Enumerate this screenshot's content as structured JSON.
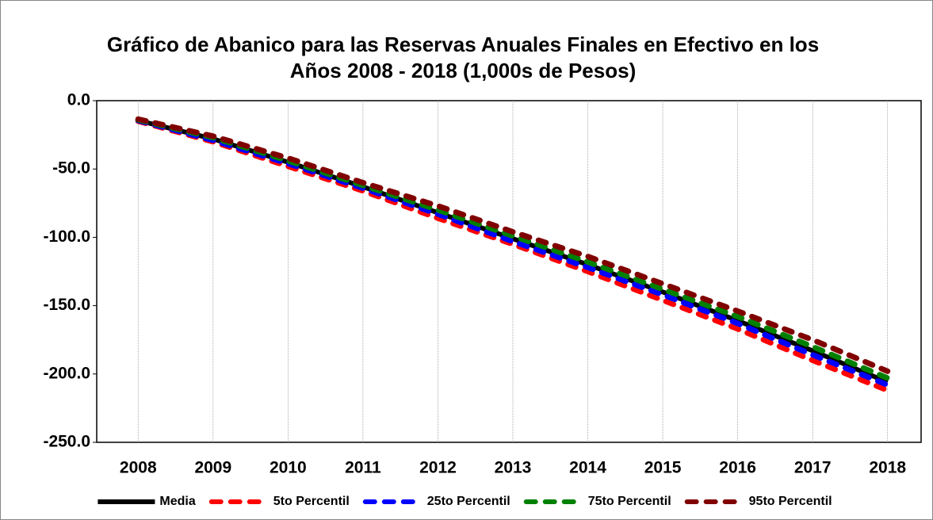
{
  "chart_data": {
    "type": "line",
    "title": "Gráfico de Abanico para las Reservas Anuales Finales en Efectivo en los Años 2008 - 2018 (1,000s de Pesos)",
    "categories": [
      "2008",
      "2009",
      "2010",
      "2011",
      "2012",
      "2013",
      "2014",
      "2015",
      "2016",
      "2017",
      "2018"
    ],
    "series": [
      {
        "name": "Media",
        "color": "#000000",
        "dashed": false,
        "values": [
          -14.5,
          -28,
          -45,
          -63,
          -82,
          -101,
          -120,
          -140,
          -161,
          -183,
          -206
        ]
      },
      {
        "name": "5to Percentil",
        "color": "#ff0000",
        "dashed": true,
        "values": [
          -15,
          -30,
          -48,
          -66,
          -86,
          -105,
          -125,
          -146,
          -167,
          -190,
          -212
        ]
      },
      {
        "name": "25to Percentil",
        "color": "#0000ff",
        "dashed": true,
        "values": [
          -14.5,
          -29,
          -46,
          -64,
          -83,
          -103,
          -122,
          -142,
          -163,
          -186,
          -208
        ]
      },
      {
        "name": "75to Percentil",
        "color": "#008000",
        "dashed": true,
        "values": [
          -14,
          -27,
          -44,
          -62,
          -80,
          -99,
          -118,
          -138,
          -158,
          -180,
          -203
        ]
      },
      {
        "name": "95to Percentil",
        "color": "#800000",
        "dashed": true,
        "values": [
          -13.5,
          -26,
          -42,
          -60,
          -77,
          -96,
          -114,
          -134,
          -154,
          -175,
          -198
        ]
      }
    ],
    "ylim": [
      -250,
      0
    ],
    "yticks": [
      {
        "value": 0,
        "label": "0.0"
      },
      {
        "value": -50,
        "label": "-50.0"
      },
      {
        "value": -100,
        "label": "-100.0"
      },
      {
        "value": -150,
        "label": "-150.0"
      },
      {
        "value": -200,
        "label": "-200.0"
      },
      {
        "value": -250,
        "label": "-250.0"
      }
    ],
    "grid": true,
    "legend": "bottom"
  }
}
